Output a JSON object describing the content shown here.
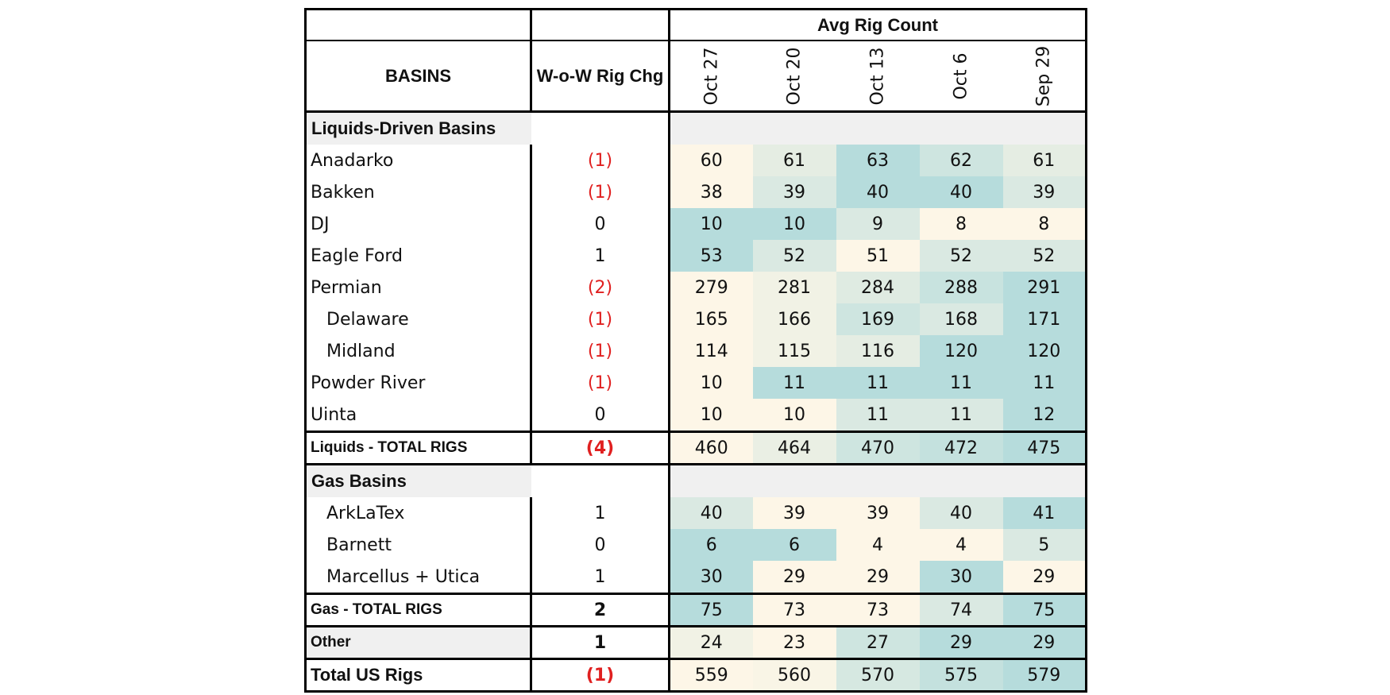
{
  "table": {
    "title": "Avg Rig Count",
    "basins_header": "BASINS",
    "change_header": "W-o-W Rig Chg",
    "weeks": [
      "Oct 27",
      "Oct 20",
      "Oct 13",
      "Oct 6",
      "Sep 29"
    ],
    "liquids_section": "Liquids-Driven Basins",
    "gas_section": "Gas Basins",
    "rows": {
      "anadarko": {
        "name": "Anadarko",
        "chg": "(1)",
        "values": [
          "60",
          "61",
          "63",
          "62",
          "61"
        ]
      },
      "bakken": {
        "name": "Bakken",
        "chg": "(1)",
        "values": [
          "38",
          "39",
          "40",
          "40",
          "39"
        ]
      },
      "dj": {
        "name": "DJ",
        "chg": "0",
        "values": [
          "10",
          "10",
          "9",
          "8",
          "8"
        ]
      },
      "eagle_ford": {
        "name": "Eagle Ford",
        "chg": "1",
        "values": [
          "53",
          "52",
          "51",
          "52",
          "52"
        ]
      },
      "permian": {
        "name": "Permian",
        "chg": "(2)",
        "values": [
          "279",
          "281",
          "284",
          "288",
          "291"
        ]
      },
      "delaware": {
        "name": "Delaware",
        "chg": "(1)",
        "values": [
          "165",
          "166",
          "169",
          "168",
          "171"
        ]
      },
      "midland": {
        "name": "Midland",
        "chg": "(1)",
        "values": [
          "114",
          "115",
          "116",
          "120",
          "120"
        ]
      },
      "powder": {
        "name": "Powder River",
        "chg": "(1)",
        "values": [
          "10",
          "11",
          "11",
          "11",
          "11"
        ]
      },
      "uinta": {
        "name": "Uinta",
        "chg": "0",
        "values": [
          "10",
          "10",
          "11",
          "11",
          "12"
        ]
      },
      "liq_total": {
        "name": "Liquids - TOTAL RIGS",
        "chg": "(4)",
        "values": [
          "460",
          "464",
          "470",
          "472",
          "475"
        ]
      },
      "arklatex": {
        "name": "ArkLaTex",
        "chg": "1",
        "values": [
          "40",
          "39",
          "39",
          "40",
          "41"
        ]
      },
      "barnett": {
        "name": "Barnett",
        "chg": "0",
        "values": [
          "6",
          "6",
          "4",
          "4",
          "5"
        ]
      },
      "marcellus": {
        "name": "Marcellus + Utica",
        "chg": "1",
        "values": [
          "30",
          "29",
          "29",
          "30",
          "29"
        ]
      },
      "gas_total": {
        "name": "Gas - TOTAL RIGS",
        "chg": "2",
        "values": [
          "75",
          "73",
          "73",
          "74",
          "75"
        ]
      },
      "other": {
        "name": "Other",
        "chg": "1",
        "values": [
          "24",
          "23",
          "27",
          "29",
          "29"
        ]
      },
      "us_total": {
        "name": "Total US Rigs",
        "chg": "(1)",
        "values": [
          "559",
          "560",
          "570",
          "575",
          "579"
        ]
      }
    }
  },
  "colors": {
    "heat_low": "#fdf6e7",
    "heat_high": "#b6dcdc",
    "negative_text": "#e02020",
    "section_fill": "#f0f0f0"
  }
}
